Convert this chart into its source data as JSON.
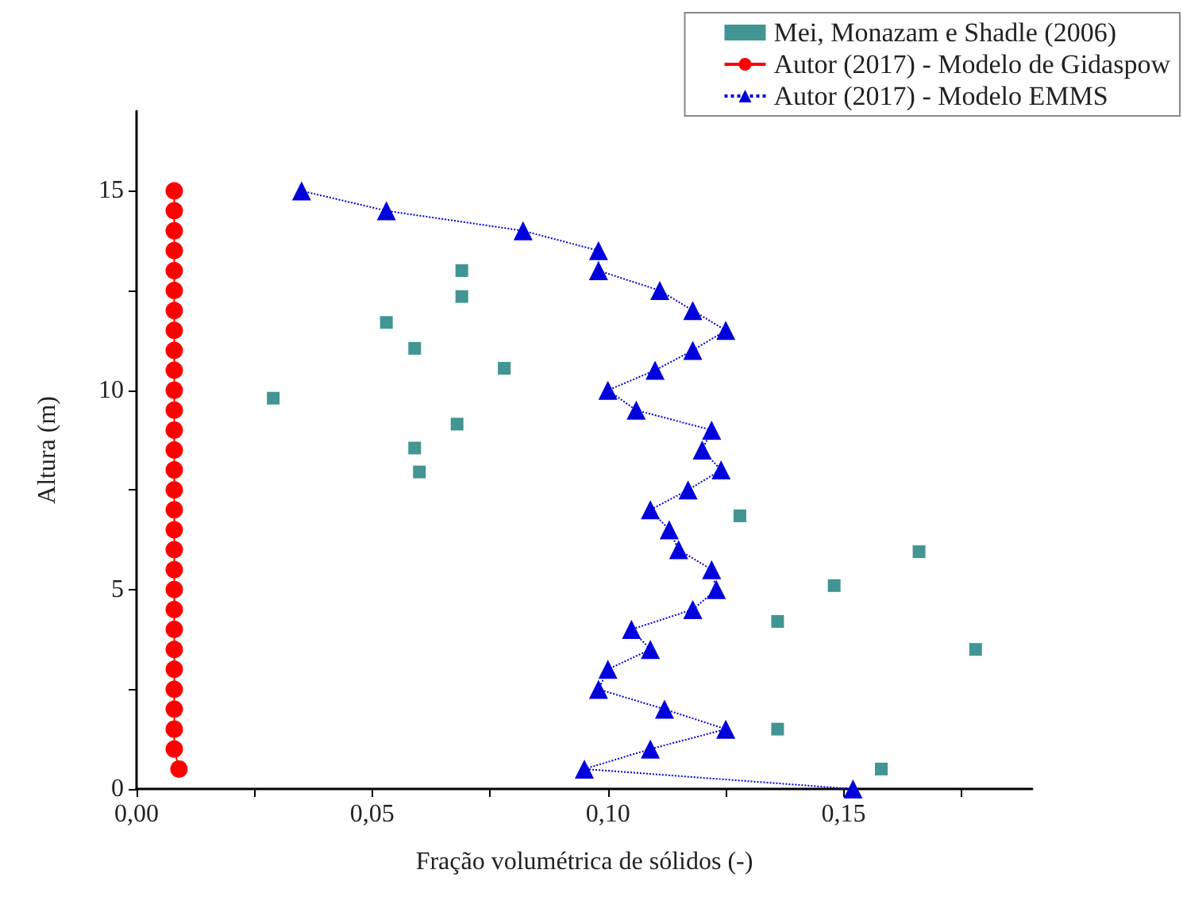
{
  "chart_data": {
    "type": "scatter",
    "xlabel": "Fração volumétrica de sólidos (-)",
    "ylabel": "Altura (m)",
    "xlim": [
      0,
      0.19
    ],
    "ylim": [
      0,
      17
    ],
    "xticks": [
      {
        "value": 0,
        "label": "0,00"
      },
      {
        "value": 0.025,
        "label": null
      },
      {
        "value": 0.05,
        "label": "0,05"
      },
      {
        "value": 0.075,
        "label": null
      },
      {
        "value": 0.1,
        "label": "0,10"
      },
      {
        "value": 0.125,
        "label": null
      },
      {
        "value": 0.15,
        "label": "0,15"
      },
      {
        "value": 0.175,
        "label": null
      }
    ],
    "yticks": [
      0,
      {
        "value": 2.5,
        "label": null
      },
      5,
      {
        "value": 7.5,
        "label": null
      },
      10,
      {
        "value": 12.5,
        "label": null
      },
      15
    ],
    "legend": "top right",
    "grid": false,
    "series": [
      {
        "name": "Mei, Monazam e Shadle (2006)",
        "marker": "square",
        "color": "#117a78",
        "x": [
          0.069,
          0.069,
          0.053,
          0.059,
          0.078,
          0.029,
          0.068,
          0.059,
          0.06,
          0.128,
          0.166,
          0.148,
          0.136,
          0.178,
          0.136,
          0.158
        ],
        "values": [
          13.0,
          12.35,
          11.7,
          11.05,
          10.55,
          9.8,
          9.15,
          8.55,
          7.95,
          6.85,
          5.95,
          5.1,
          4.2,
          3.5,
          1.5,
          0.5
        ]
      },
      {
        "name": "Autor (2017) - Modelo de Gidaspow",
        "type": "line",
        "marker": "circle",
        "line_style": "solid",
        "color": "#ff0000",
        "x": [
          0.009,
          0.008,
          0.008,
          0.008,
          0.008,
          0.008,
          0.008,
          0.008,
          0.008,
          0.008,
          0.008,
          0.008,
          0.008,
          0.008,
          0.008,
          0.008,
          0.008,
          0.008,
          0.008,
          0.008,
          0.008,
          0.008,
          0.008,
          0.008,
          0.008,
          0.008,
          0.008,
          0.008,
          0.008,
          0.008
        ],
        "values": [
          0.5,
          1,
          1.5,
          2,
          2.5,
          3,
          3.5,
          4,
          4.5,
          5,
          5.5,
          6,
          6.5,
          7,
          7.5,
          8,
          8.5,
          9,
          9.5,
          10,
          10.5,
          11,
          11.5,
          12,
          12.5,
          13,
          13.5,
          14,
          14.5,
          15
        ]
      },
      {
        "name": "Autor (2017) - Modelo EMMS",
        "type": "line",
        "marker": "triangle",
        "line_style": "dotted",
        "color": "#0000dd",
        "x": [
          0.035,
          0.053,
          0.082,
          0.098,
          0.098,
          0.111,
          0.118,
          0.125,
          0.118,
          0.11,
          0.1,
          0.106,
          0.122,
          0.12,
          0.124,
          0.117,
          0.109,
          0.113,
          0.115,
          0.122,
          0.123,
          0.118,
          0.105,
          0.109,
          0.1,
          0.098,
          0.112,
          0.125,
          0.109,
          0.095,
          0.152
        ],
        "values": [
          15,
          14.5,
          14,
          13.5,
          13,
          12.5,
          12,
          11.5,
          11,
          10.5,
          10,
          9.5,
          9,
          8.5,
          8,
          7.5,
          7,
          6.5,
          6,
          5.5,
          5,
          4.5,
          4,
          3.5,
          3,
          2.5,
          2,
          1.5,
          1,
          0.5,
          0
        ]
      }
    ]
  }
}
